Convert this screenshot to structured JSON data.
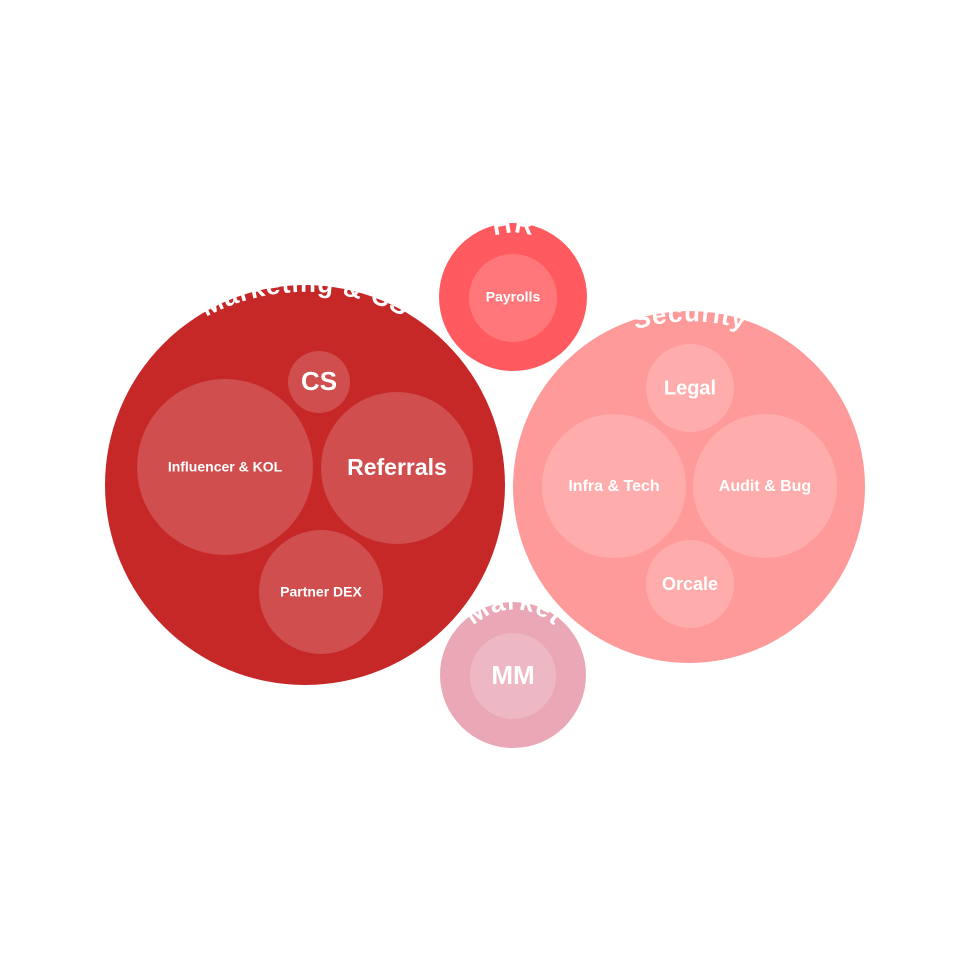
{
  "colors": {
    "marketing": "#c62828",
    "hr": "#ff5a5f",
    "security": "#ff9a9a",
    "market": "#eaa8b6",
    "child_overlay": "rgba(255,255,255,0.18)"
  },
  "groups": [
    {
      "key": "marketing",
      "label": "Marketing & CS",
      "children": [
        {
          "label": "CS"
        },
        {
          "label": "Influencer & KOL"
        },
        {
          "label": "Referrals"
        },
        {
          "label": "Partner DEX"
        }
      ]
    },
    {
      "key": "hr",
      "label": "HR",
      "children": [
        {
          "label": "Payrolls"
        }
      ]
    },
    {
      "key": "security",
      "label": "Security",
      "children": [
        {
          "label": "Legal"
        },
        {
          "label": "Infra & Tech"
        },
        {
          "label": "Audit & Bug"
        },
        {
          "label": "Orcale"
        }
      ]
    },
    {
      "key": "market",
      "label": "Market",
      "children": [
        {
          "label": "MM"
        }
      ]
    }
  ]
}
